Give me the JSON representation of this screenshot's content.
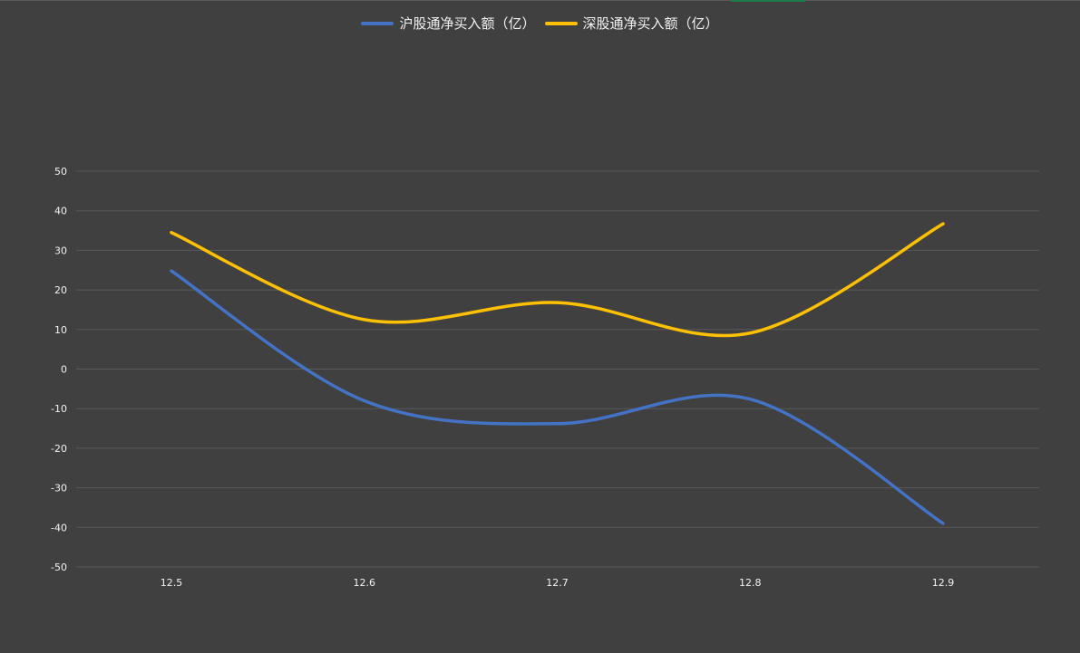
{
  "chart_data": {
    "type": "line",
    "x": [
      "12.5",
      "12.6",
      "12.7",
      "12.8",
      "12.9"
    ],
    "series": [
      {
        "name": "沪股通净买入额（亿）",
        "color": "#4472c4",
        "values": [
          24.8,
          -8.0,
          -13.8,
          -7.6,
          -39.0
        ]
      },
      {
        "name": "深股通净买入额（亿）",
        "color": "#ffc000",
        "values": [
          34.5,
          12.5,
          16.8,
          9.1,
          36.7
        ]
      }
    ],
    "yticks": [
      "50",
      "40",
      "30",
      "20",
      "10",
      "0",
      "-10",
      "-20",
      "-30",
      "-40",
      "-50"
    ],
    "ylim": [
      -50,
      50
    ],
    "grid": true,
    "legend": "top-center",
    "smooth": true
  },
  "colors": {
    "background": "#404040",
    "gridline": "#595959",
    "tick_text": "#f2f2f2"
  }
}
